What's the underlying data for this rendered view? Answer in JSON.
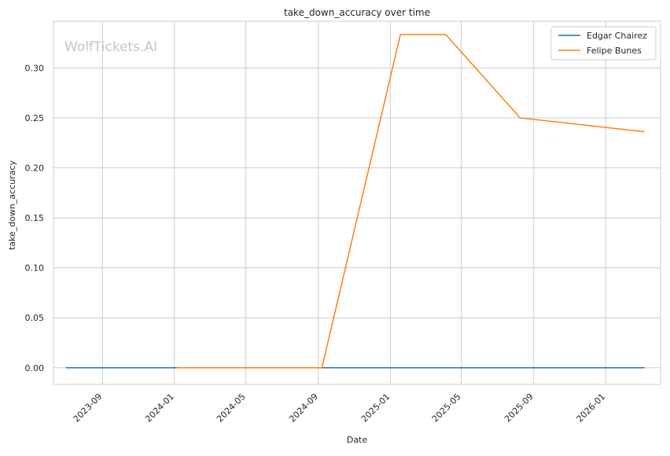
{
  "chart_data": {
    "type": "line",
    "title": "take_down_accuracy over time",
    "xlabel": "Date",
    "ylabel": "take_down_accuracy",
    "watermark": "WolfTickets.AI",
    "grid": true,
    "legend_position": "top-right",
    "x_domain": [
      "2023-06-10",
      "2026-04-04"
    ],
    "ylim": [
      -0.0167,
      0.3467
    ],
    "x_ticks": [
      "2023-09",
      "2024-01",
      "2024-05",
      "2024-09",
      "2025-01",
      "2025-05",
      "2025-09",
      "2026-01"
    ],
    "y_ticks": [
      "0.00",
      "0.05",
      "0.10",
      "0.15",
      "0.20",
      "0.25",
      "0.30"
    ],
    "series": [
      {
        "name": "Edgar Chairez",
        "color": "#1f77b4",
        "points": [
          {
            "x": "2023-07-01",
            "y": 0.0
          },
          {
            "x": "2026-03-08",
            "y": 0.0
          }
        ]
      },
      {
        "name": "Felipe Bunes",
        "color": "#ff7f0e",
        "points": [
          {
            "x": "2024-01-05",
            "y": 0.0
          },
          {
            "x": "2024-09-07",
            "y": 0.0
          },
          {
            "x": "2025-01-18",
            "y": 0.3333
          },
          {
            "x": "2025-04-05",
            "y": 0.3333
          },
          {
            "x": "2025-08-09",
            "y": 0.25
          },
          {
            "x": "2026-03-08",
            "y": 0.2361
          }
        ]
      }
    ]
  }
}
